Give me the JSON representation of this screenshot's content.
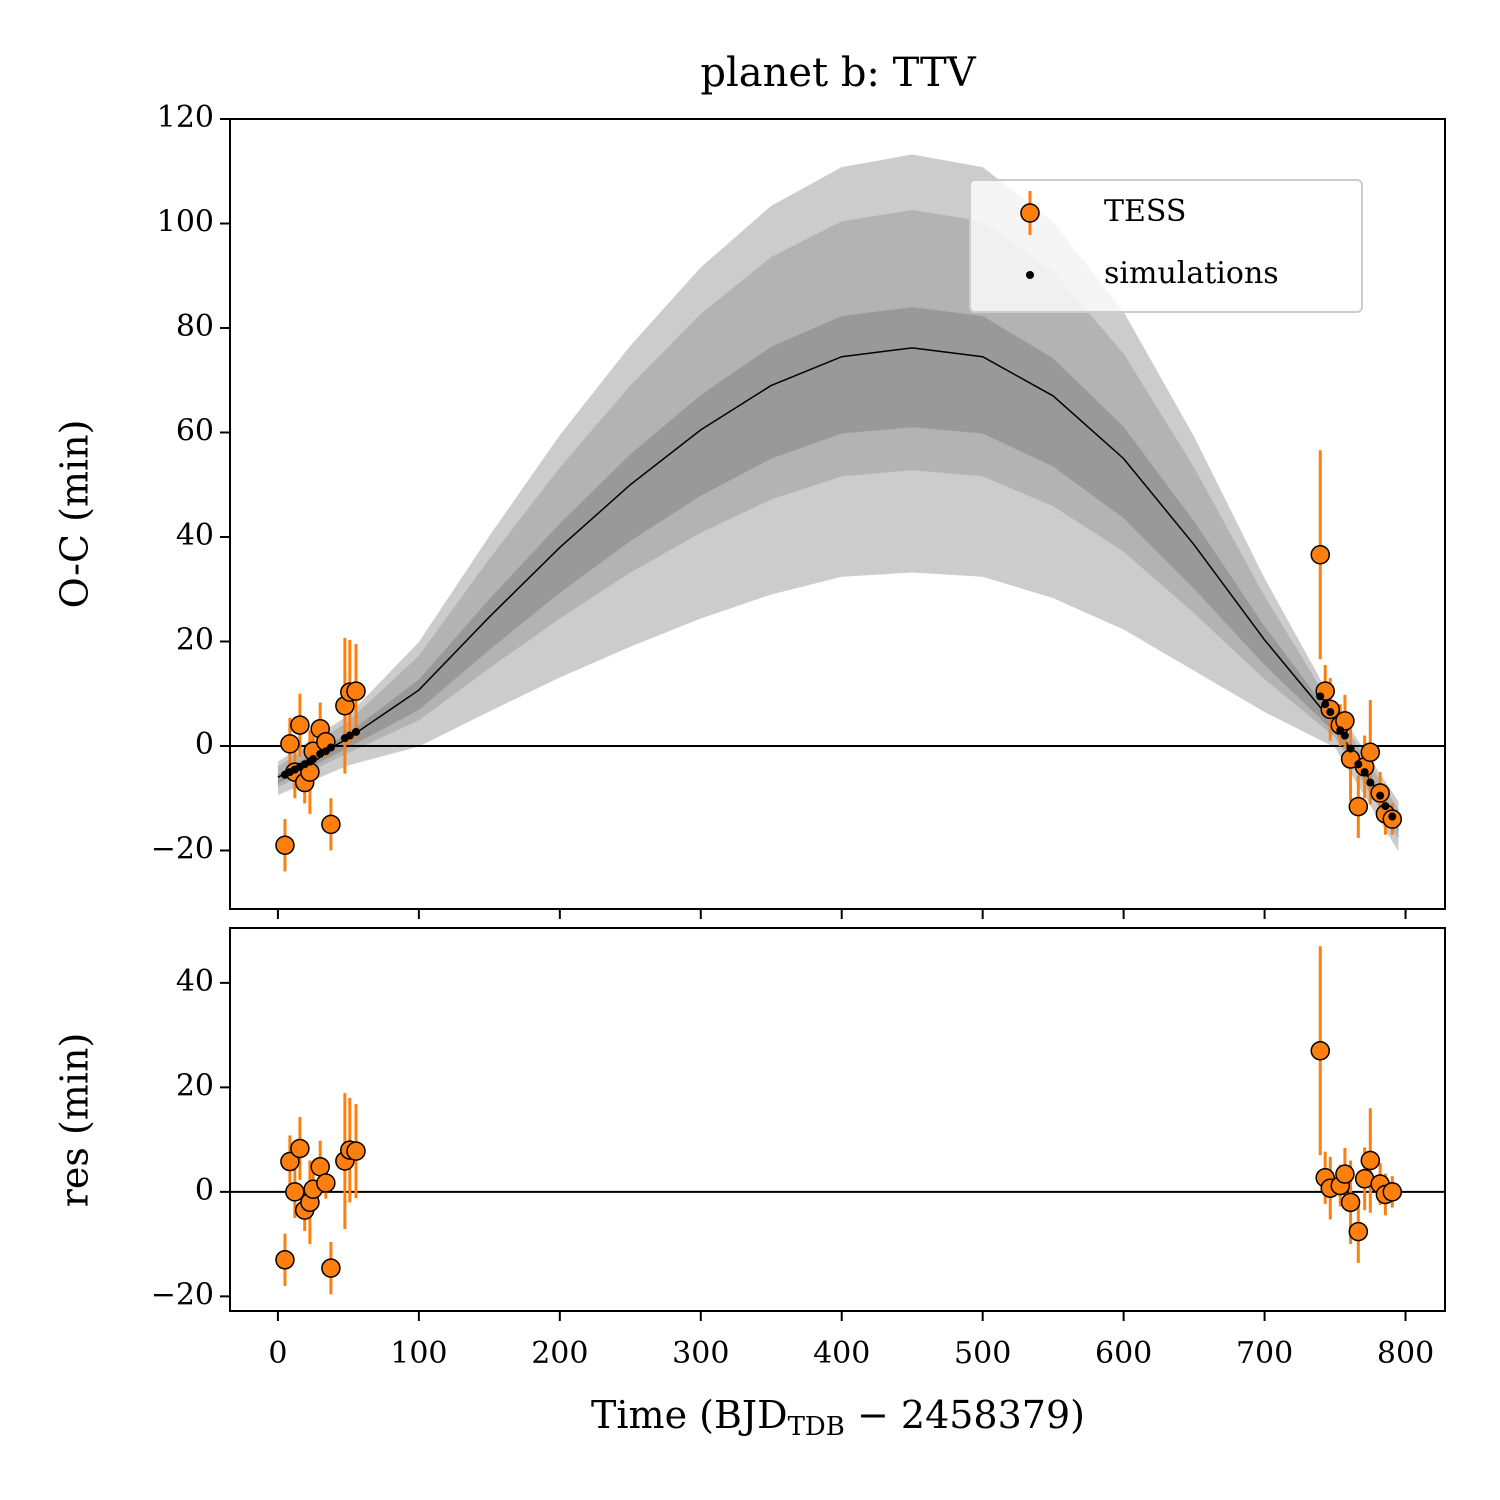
{
  "chart_data": [
    {
      "type": "errorbar",
      "title": "planet b: TTV",
      "ylabel": "O-C (min)",
      "xlim": [
        -34,
        828
      ],
      "xticks": [
        0,
        100,
        200,
        300,
        400,
        500,
        600,
        700,
        800
      ],
      "ylim": [
        -31.2,
        120
      ],
      "yticks": [
        {
          "value": -20,
          "label": "−20"
        },
        0,
        20,
        40,
        60,
        80,
        100,
        120
      ],
      "hline": 0,
      "legend": "upper right",
      "model": {
        "color": "#000000",
        "x": [
          0,
          50,
          100,
          150,
          200,
          250,
          300,
          350,
          400,
          450,
          500,
          550,
          600,
          650,
          700,
          750,
          795
        ],
        "median": [
          -6,
          1.5,
          10.7,
          24.7,
          38,
          50,
          60.5,
          69,
          74.5,
          76.2,
          74.5,
          67,
          55,
          38.5,
          20.3,
          4,
          -15
        ]
      },
      "bands": [
        {
          "color": "#cccccc",
          "lower": [
            -9.4,
            -3.7,
            -0.1,
            6.6,
            13.1,
            19,
            24.4,
            29,
            32.4,
            33.2,
            32.4,
            28.3,
            22.3,
            14.4,
            6.5,
            -0.3,
            -20.2
          ],
          "upper": [
            -3,
            5.9,
            19.9,
            40.2,
            59.5,
            76.6,
            91.6,
            103.4,
            110.8,
            113.2,
            110.8,
            100.3,
            83.1,
            59.2,
            32.1,
            7.7,
            -10.6
          ]
        },
        {
          "color": "#b3b3b3",
          "lower": [
            -7.9,
            -1.3,
            4.9,
            14.9,
            24.4,
            33.2,
            40.8,
            47.2,
            51.6,
            52.8,
            51.6,
            45.9,
            37.2,
            25.4,
            12.8,
            1.7,
            -17.8
          ],
          "upper": [
            -3.9,
            4.7,
            17.3,
            35.8,
            53.3,
            69,
            82.7,
            93.6,
            100.4,
            102.6,
            100.4,
            90.8,
            75.1,
            53.3,
            28.7,
            6.6,
            -12
          ]
        },
        {
          "color": "#999999",
          "lower": [
            -7.2,
            -0.3,
            6.9,
            18.4,
            29.3,
            39.2,
            47.9,
            55,
            59.8,
            61,
            59.8,
            53.5,
            43.6,
            30.1,
            15.5,
            2.5,
            -16.4
          ],
          "upper": [
            -5.4,
            2.5,
            12.7,
            28.1,
            42.6,
            55.8,
            67.2,
            76.4,
            82.3,
            84,
            82.3,
            74.2,
            61.1,
            43,
            22.9,
            4.8,
            -14
          ]
        }
      ],
      "series": [
        {
          "name": "TESS",
          "color": "#ff7f0e",
          "x": [
            5,
            8.5,
            12,
            15.6,
            19,
            22.7,
            25,
            30,
            34,
            37.6,
            47.5,
            51,
            55.4,
            739.5,
            743,
            746.6,
            753.7,
            757,
            761,
            766.5,
            771,
            775,
            782,
            785.7,
            790.6
          ],
          "values": [
            -19,
            0.4,
            -5,
            4,
            -7,
            -5,
            -1,
            3.3,
            0.8,
            -15,
            7.7,
            10.3,
            10.5,
            36.6,
            10.5,
            7,
            4,
            4.8,
            -2.5,
            -11.6,
            -4,
            -1.2,
            -9,
            -13,
            -14
          ],
          "errors": [
            5,
            5,
            5,
            6,
            4,
            8,
            4,
            5,
            3,
            5,
            13,
            10,
            9,
            20,
            5,
            6,
            4,
            5,
            8,
            6,
            6,
            10,
            4,
            4,
            3
          ]
        },
        {
          "name": "simulations",
          "color": "#000000",
          "x": [
            5,
            8.5,
            12,
            15.6,
            19,
            22.7,
            25,
            30,
            34,
            37.6,
            47.5,
            51,
            55.4,
            739.5,
            743,
            746.6,
            753.7,
            757,
            761,
            766.5,
            771,
            775,
            782,
            785.7,
            790.6
          ],
          "values": [
            -5.5,
            -5,
            -4.5,
            -4,
            -3.5,
            -3,
            -2.5,
            -1.5,
            -1,
            -0.3,
            1.5,
            2,
            2.7,
            9.5,
            8,
            6.5,
            3,
            2,
            -0.5,
            -3.5,
            -5,
            -7,
            -9.5,
            -11.5,
            -13.5
          ]
        }
      ]
    },
    {
      "type": "errorbar",
      "ylabel": "res (min)",
      "xlabel": {
        "text": "Time (BJD",
        "subscript": "TDB",
        "suffix": " − 2458379)"
      },
      "xlim": [
        -34,
        828
      ],
      "xticks": [
        0,
        100,
        200,
        300,
        400,
        500,
        600,
        700,
        800
      ],
      "ylim": [
        -22.8,
        50.5
      ],
      "yticks": [
        {
          "value": -20,
          "label": "−20"
        },
        0,
        20,
        40
      ],
      "hline": 0,
      "series": [
        {
          "color": "#ff7f0e",
          "x": [
            5,
            8.5,
            12,
            15.6,
            19,
            22.7,
            25,
            30,
            34,
            37.6,
            47.5,
            51,
            55.4,
            739.5,
            743,
            746.6,
            753.7,
            757,
            761,
            766.5,
            771,
            775,
            782,
            785.7,
            790.6
          ],
          "values": [
            -13,
            5.8,
            0,
            8.3,
            -3.5,
            -2,
            0.5,
            4.8,
            1.7,
            -14.6,
            5.9,
            8,
            7.8,
            27,
            2.7,
            0.7,
            1.2,
            3.4,
            -2,
            -7.6,
            2.5,
            6,
            1.5,
            -0.5,
            0
          ],
          "errors": [
            5,
            5,
            5,
            6,
            4,
            8,
            4,
            5,
            3,
            5,
            13,
            10,
            9,
            20,
            5,
            6,
            4,
            5,
            8,
            6,
            6,
            10,
            4,
            4,
            3
          ]
        }
      ]
    }
  ]
}
